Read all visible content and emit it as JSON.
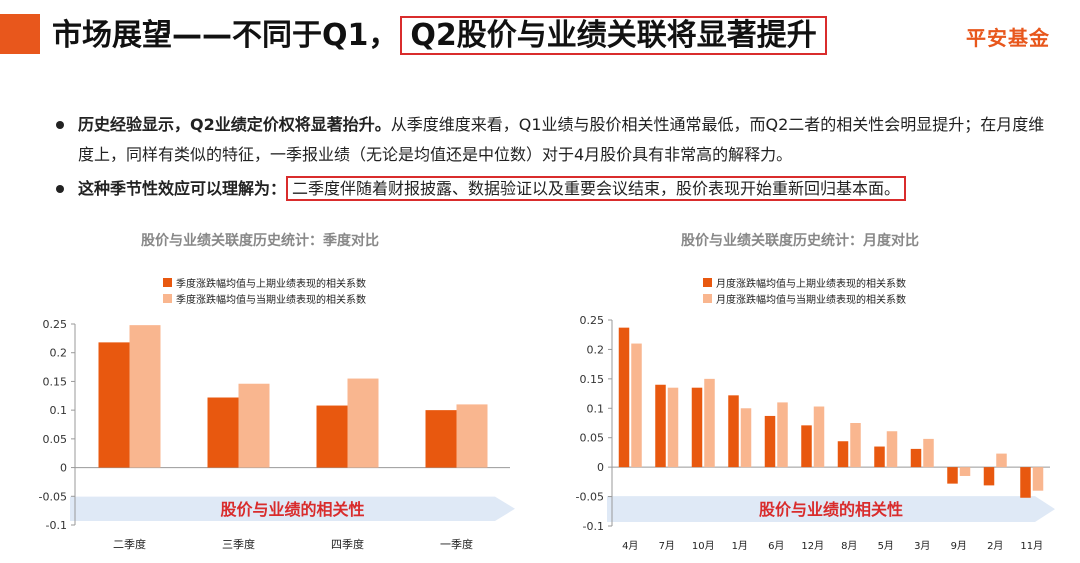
{
  "header": {
    "title_prefix": "市场展望——不同于Q1，",
    "title_highlight": "Q2股价与业绩关联将显著提升",
    "brand": "平安基金"
  },
  "bullets": [
    {
      "bold": "历史经验显示，Q2业绩定价权将显著抬升。",
      "text": "从季度维度来看，Q1业绩与股价相关性通常最低，而Q2二者的相关性会明显提升；在月度维度上，同样有类似的特征，一季报业绩（无论是均值还是中位数）对于4月股价具有非常高的解释力。"
    },
    {
      "bold": "这种季节性效应可以理解为：",
      "boxed": "二季度伴随着财报披露、数据验证以及重要会议结束，股价表现开始重新回归基本面。"
    }
  ],
  "colors": {
    "dark": "#e8580f",
    "light": "#f9b68f",
    "band": "#dfe9f6",
    "accent": "#e8571c",
    "highlight": "#d92c2c"
  },
  "chart_data": [
    {
      "type": "bar",
      "title": "股价与业绩关联度历史统计：季度对比",
      "band_label": "股价与业绩的相关性",
      "categories": [
        "二季度",
        "三季度",
        "四季度",
        "一季度"
      ],
      "series": [
        {
          "name": "季度涨跌幅均值与上期业绩表现的相关系数",
          "values": [
            0.218,
            0.122,
            0.108,
            0.1
          ]
        },
        {
          "name": "季度涨跌幅均值与当期业绩表现的相关系数",
          "values": [
            0.248,
            0.146,
            0.155,
            0.11
          ]
        }
      ],
      "yticks": [
        "0.25",
        "0.2",
        "0.15",
        "0.1",
        "0.05",
        "0",
        "-0.05",
        "-0.1"
      ],
      "ylim": [
        -0.1,
        0.25
      ],
      "legend_position": "top"
    },
    {
      "type": "bar",
      "title": "股价与业绩关联度历史统计：月度对比",
      "band_label": "股价与业绩的相关性",
      "categories": [
        "4月",
        "7月",
        "10月",
        "1月",
        "6月",
        "12月",
        "8月",
        "5月",
        "3月",
        "9月",
        "2月",
        "11月"
      ],
      "series": [
        {
          "name": "月度涨跌幅均值与上期业绩表现的相关系数",
          "values": [
            0.237,
            0.14,
            0.135,
            0.122,
            0.087,
            0.071,
            0.044,
            0.035,
            0.031,
            -0.028,
            -0.031,
            -0.052
          ]
        },
        {
          "name": "月度涨跌幅均值与当期业绩表现的相关系数",
          "values": [
            0.21,
            0.135,
            0.15,
            0.1,
            0.11,
            0.103,
            0.075,
            0.061,
            0.048,
            -0.015,
            0.023,
            -0.04
          ]
        }
      ],
      "yticks": [
        "0.25",
        "0.2",
        "0.15",
        "0.1",
        "0.05",
        "0",
        "-0.05",
        "-0.1"
      ],
      "ylim": [
        -0.1,
        0.25
      ],
      "legend_position": "top"
    }
  ]
}
